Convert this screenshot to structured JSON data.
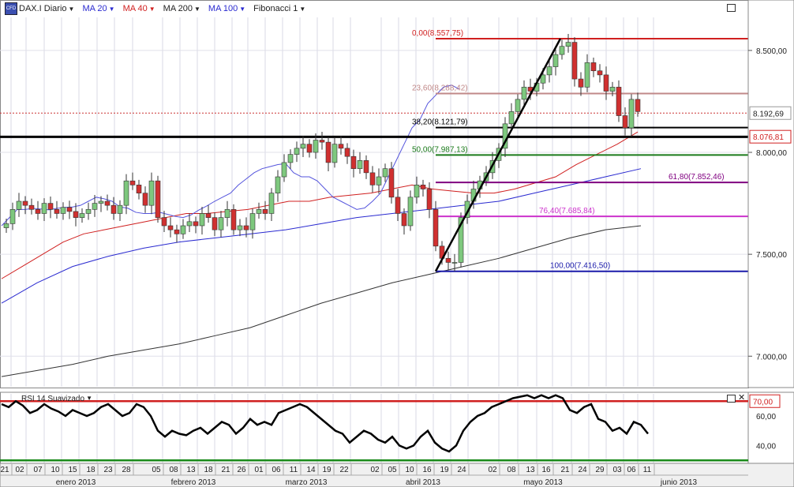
{
  "toolbar": {
    "symbol": "DAX.I Diario",
    "indicators": [
      {
        "label": "MA 20",
        "color": "#2a2ad0"
      },
      {
        "label": "MA 40",
        "color": "#d02020"
      },
      {
        "label": "MA 200",
        "color": "#222222"
      },
      {
        "label": "MA 100",
        "color": "#2a2ad0"
      },
      {
        "label": "Fibonacci 1",
        "color": "#222222"
      }
    ]
  },
  "rsi_label": "RSI 14 Suavizado",
  "chart_data": {
    "type": "candlestick",
    "price_axis": {
      "ticks": [
        "8.500,00",
        "8.000,00",
        "7.500,00",
        "7.000,00"
      ],
      "tick_values": [
        8500,
        8000,
        7500,
        7000
      ],
      "range": [
        6850,
        8670
      ]
    },
    "price_labels": [
      {
        "text": "8.192,69",
        "value": 8192.69,
        "color": "#222222",
        "border": "#999999"
      },
      {
        "text": "8.076,81",
        "value": 8076.81,
        "color": "#d02020",
        "border": "#d02020"
      }
    ],
    "horizontal_levels": [
      {
        "value": 8192.69,
        "color": "#cc3333",
        "style": "dotted",
        "width": 1
      },
      {
        "value": 8076,
        "color": "#000000",
        "style": "solid",
        "width": 3
      }
    ],
    "fibonacci": [
      {
        "text": "0,00(8.557,75)",
        "value": 8557.75,
        "color": "#d02020",
        "label_x": 522
      },
      {
        "text": "23,60(8.288,42)",
        "value": 8288.42,
        "color": "#c08888",
        "label_x": 522
      },
      {
        "text": "38,20(8.121,79)",
        "value": 8121.79,
        "color": "#000000",
        "label_x": 522
      },
      {
        "text": "50,00(7.987,13)",
        "value": 7987.13,
        "color": "#1a7a1a",
        "label_x": 522
      },
      {
        "text": "61,80(7.852,46)",
        "value": 7852.46,
        "color": "#800080",
        "label_x": 847
      },
      {
        "text": "76,40(7.685,84)",
        "value": 7685.84,
        "color": "#cc33cc",
        "label_x": 683
      },
      {
        "text": "100,00(7.416,50)",
        "value": 7416.5,
        "color": "#1a1aaa",
        "label_x": 697
      }
    ],
    "trendline": {
      "from": [
        552,
        7416.5
      ],
      "to": [
        710,
        8557.75
      ]
    },
    "closes": [
      7650,
      7720,
      7760,
      7740,
      7720,
      7700,
      7750,
      7720,
      7700,
      7730,
      7710,
      7680,
      7700,
      7720,
      7750,
      7760,
      7740,
      7700,
      7740,
      7860,
      7840,
      7800,
      7740,
      7860,
      7680,
      7640,
      7620,
      7600,
      7640,
      7660,
      7640,
      7700,
      7680,
      7620,
      7680,
      7720,
      7620,
      7640,
      7620,
      7700,
      7720,
      7700,
      7800,
      7880,
      7950,
      7990,
      8020,
      8040,
      8000,
      8060,
      8050,
      7950,
      8040,
      8020,
      7980,
      7920,
      7960,
      7900,
      7840,
      7880,
      7920,
      7780,
      7700,
      7640,
      7780,
      7840,
      7820,
      7720,
      7540,
      7480,
      7460,
      7460,
      7680,
      7760,
      7820,
      7860,
      7900,
      7960,
      8020,
      8140,
      8200,
      8260,
      8320,
      8300,
      8340,
      8380,
      8420,
      8480,
      8520,
      8540,
      8360,
      8320,
      8440,
      8400,
      8380,
      8300,
      8320,
      8180,
      8120,
      8260,
      8200
    ],
    "ma20": [
      7640,
      7680,
      7720,
      7720,
      7725,
      7722,
      7718,
      7725,
      7730,
      7732,
      7740,
      7760,
      7780,
      7772,
      7760,
      7732,
      7726,
      7706,
      7700,
      7700,
      7706,
      7696,
      7686,
      7680,
      7693,
      7717,
      7737,
      7760,
      7780,
      7800,
      7840,
      7870,
      7900,
      7920,
      7930,
      7940,
      7945,
      7900,
      7880,
      7880,
      7860,
      7820,
      7780,
      7760,
      7740,
      7720,
      7727,
      7760,
      7800,
      7880,
      7960,
      8040,
      8120,
      8160,
      8240,
      8280,
      8320,
      8330,
      8310
    ],
    "ma20_start_x": 2,
    "ma20_step": 10,
    "ma40": [
      7380,
      7440,
      7500,
      7560,
      7600,
      7620,
      7640,
      7660,
      7680,
      7700,
      7700,
      7710,
      7720,
      7740,
      7760,
      7760,
      7780,
      7790,
      7800,
      7820,
      7840,
      7820,
      7810,
      7800,
      7800,
      7820,
      7850,
      7880,
      7940,
      7990,
      8040,
      8100
    ],
    "ma40_start_x": 2,
    "ma40_step": 26,
    "ma100": [
      7260,
      7360,
      7440,
      7490,
      7530,
      7560,
      7580,
      7600,
      7620,
      7650,
      7680,
      7700,
      7720,
      7740,
      7760,
      7800,
      7840,
      7880,
      7920
    ],
    "ma100_start_x": 2,
    "ma100_step": 45,
    "ma200": [
      6900,
      6930,
      6960,
      7000,
      7030,
      7060,
      7100,
      7140,
      7200,
      7260,
      7310,
      7360,
      7400,
      7440,
      7480,
      7530,
      7580,
      7620,
      7640
    ],
    "ma200_start_x": 2,
    "ma200_step": 45,
    "candle_start_x": 8,
    "candle_step": 8,
    "rsi": {
      "levels": [
        {
          "text": "70,00",
          "value": 70,
          "color": "#d02020"
        },
        {
          "value": 30,
          "color": "#1a8a1a"
        }
      ],
      "ticks": [
        "60,00",
        "40,00"
      ],
      "tick_values": [
        60,
        40
      ],
      "range": [
        28,
        76
      ],
      "values": [
        68,
        66,
        70,
        67,
        62,
        64,
        68,
        65,
        63,
        60,
        64,
        62,
        60,
        62,
        66,
        68,
        64,
        60,
        62,
        68,
        66,
        60,
        50,
        46,
        50,
        48,
        47,
        50,
        52,
        48,
        52,
        56,
        54,
        48,
        52,
        58,
        54,
        56,
        54,
        62,
        64,
        66,
        68,
        66,
        62,
        58,
        54,
        50,
        48,
        42,
        46,
        50,
        48,
        44,
        42,
        46,
        40,
        38,
        40,
        46,
        50,
        42,
        38,
        36,
        40,
        50,
        56,
        60,
        62,
        66,
        68,
        70,
        72,
        73,
        74,
        72,
        74,
        72,
        74,
        72,
        64,
        62,
        66,
        68,
        58,
        56,
        50,
        52,
        48,
        56,
        54,
        48
      ],
      "start_x": 2,
      "step": 9
    },
    "x_axis": {
      "day_labels": [
        "21",
        "02",
        "07",
        "10",
        "15",
        "18",
        "23",
        "28",
        "05",
        "08",
        "13",
        "18",
        "21",
        "26",
        "01",
        "06",
        "11",
        "14",
        "19",
        "22",
        "02",
        "05",
        "10",
        "16",
        "19",
        "24",
        "02",
        "08",
        "13",
        "16",
        "21",
        "24",
        "29",
        "03",
        "06",
        "11"
      ],
      "day_x": [
        6,
        25,
        48,
        70,
        92,
        115,
        137,
        160,
        198,
        220,
        242,
        264,
        286,
        306,
        328,
        350,
        372,
        394,
        414,
        436,
        475,
        497,
        519,
        541,
        563,
        585,
        624,
        648,
        672,
        692,
        716,
        738,
        760,
        782,
        800,
        820
      ],
      "months": [
        {
          "label": "enero 2013",
          "x": 96
        },
        {
          "label": "febrero 2013",
          "x": 245
        },
        {
          "label": "marzo 2013",
          "x": 388
        },
        {
          "label": "abril 2013",
          "x": 536
        },
        {
          "label": "mayo 2013",
          "x": 688
        },
        {
          "label": "junio 2013",
          "x": 860
        }
      ]
    }
  }
}
